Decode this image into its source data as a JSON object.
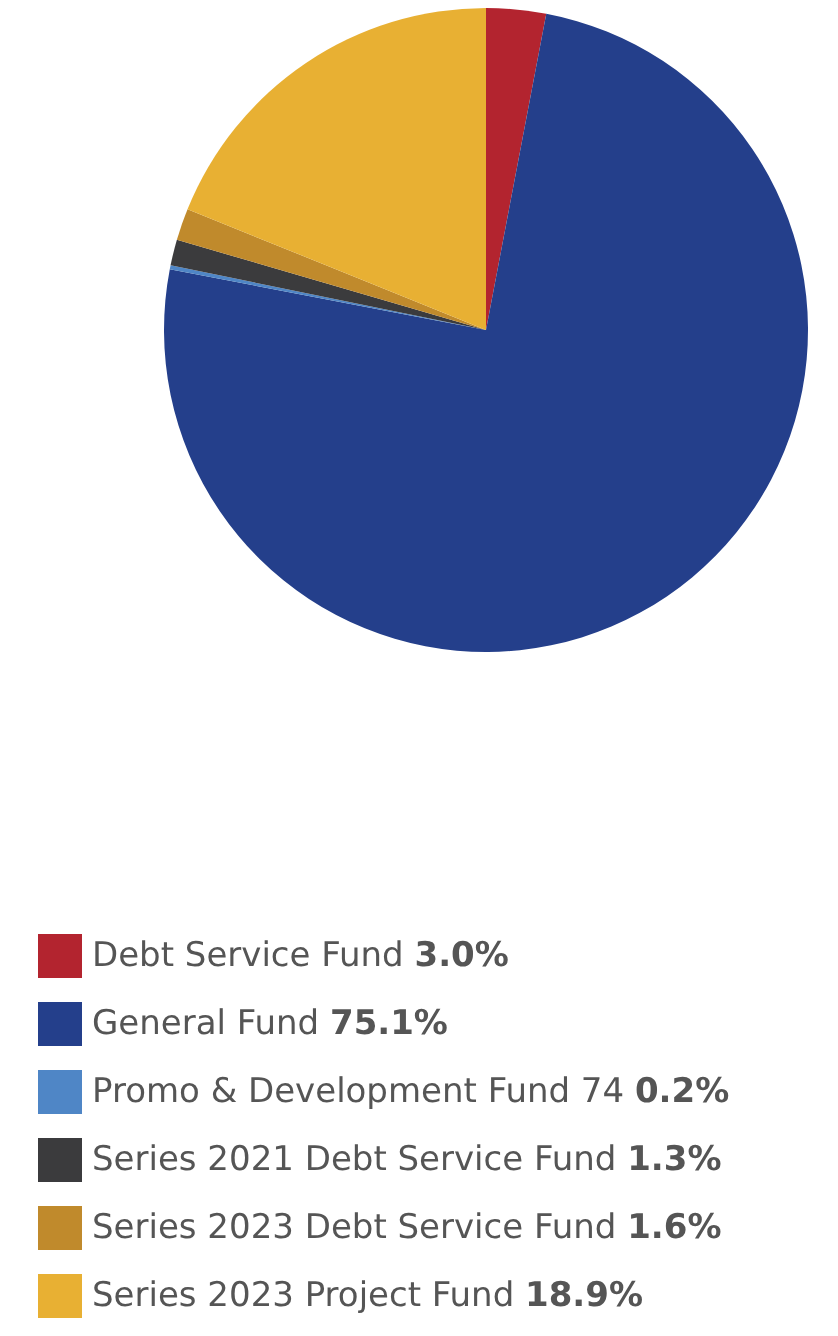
{
  "chart_data": {
    "type": "pie",
    "categories": [
      "Debt Service Fund",
      "General Fund",
      "Promo & Development Fund 74",
      "Series 2021 Debt Service Fund",
      "Series 2023 Debt Service Fund",
      "Series 2023 Project Fund"
    ],
    "values": [
      3.0,
      75.1,
      0.2,
      1.3,
      1.6,
      18.9
    ],
    "value_labels": [
      "3.0%",
      "75.1%",
      "0.2%",
      "1.3%",
      "1.6%",
      "18.9%"
    ],
    "colors": [
      "#b3242f",
      "#243f8b",
      "#4f86c6",
      "#3b3b3d",
      "#c08a2c",
      "#e8b033"
    ],
    "legend": "bottom"
  }
}
